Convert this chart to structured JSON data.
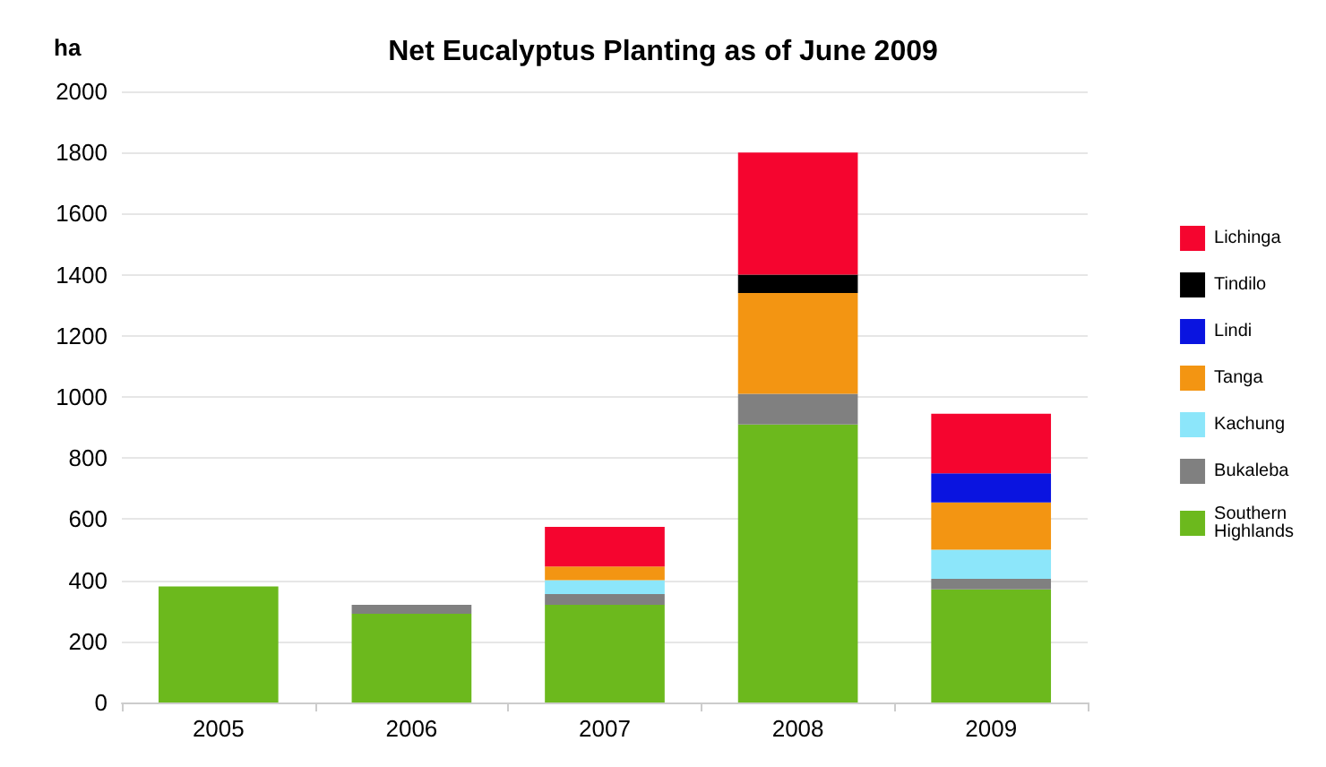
{
  "chart_data": {
    "type": "bar",
    "title": "Net Eucalyptus Planting as of June 2009",
    "ylabel": "ha",
    "categories": [
      "2005",
      "2006",
      "2007",
      "2008",
      "2009"
    ],
    "series": [
      {
        "name": "Southern Highlands",
        "color": "#6cb91d",
        "values": [
          380,
          290,
          320,
          910,
          370
        ]
      },
      {
        "name": "Bukaleba",
        "color": "#808080",
        "values": [
          null,
          30,
          35,
          100,
          35
        ]
      },
      {
        "name": "Kachung",
        "color": "#8ce6fa",
        "values": [
          null,
          null,
          45,
          null,
          95
        ]
      },
      {
        "name": "Tanga",
        "color": "#f39512",
        "values": [
          null,
          null,
          45,
          330,
          155
        ]
      },
      {
        "name": "Lindi",
        "color": "#0a14e0",
        "values": [
          null,
          null,
          null,
          null,
          95
        ]
      },
      {
        "name": "Tindilo",
        "color": "#000000",
        "values": [
          null,
          null,
          null,
          60,
          null
        ]
      },
      {
        "name": "Lichinga",
        "color": "#f5052f",
        "values": [
          null,
          null,
          130,
          400,
          195
        ]
      }
    ],
    "stacked": true,
    "ylim": [
      0,
      2000
    ],
    "yticks": [
      0,
      200,
      400,
      600,
      800,
      1000,
      1200,
      1400,
      1600,
      1800,
      2000
    ],
    "grid": "y",
    "legend": "right"
  }
}
